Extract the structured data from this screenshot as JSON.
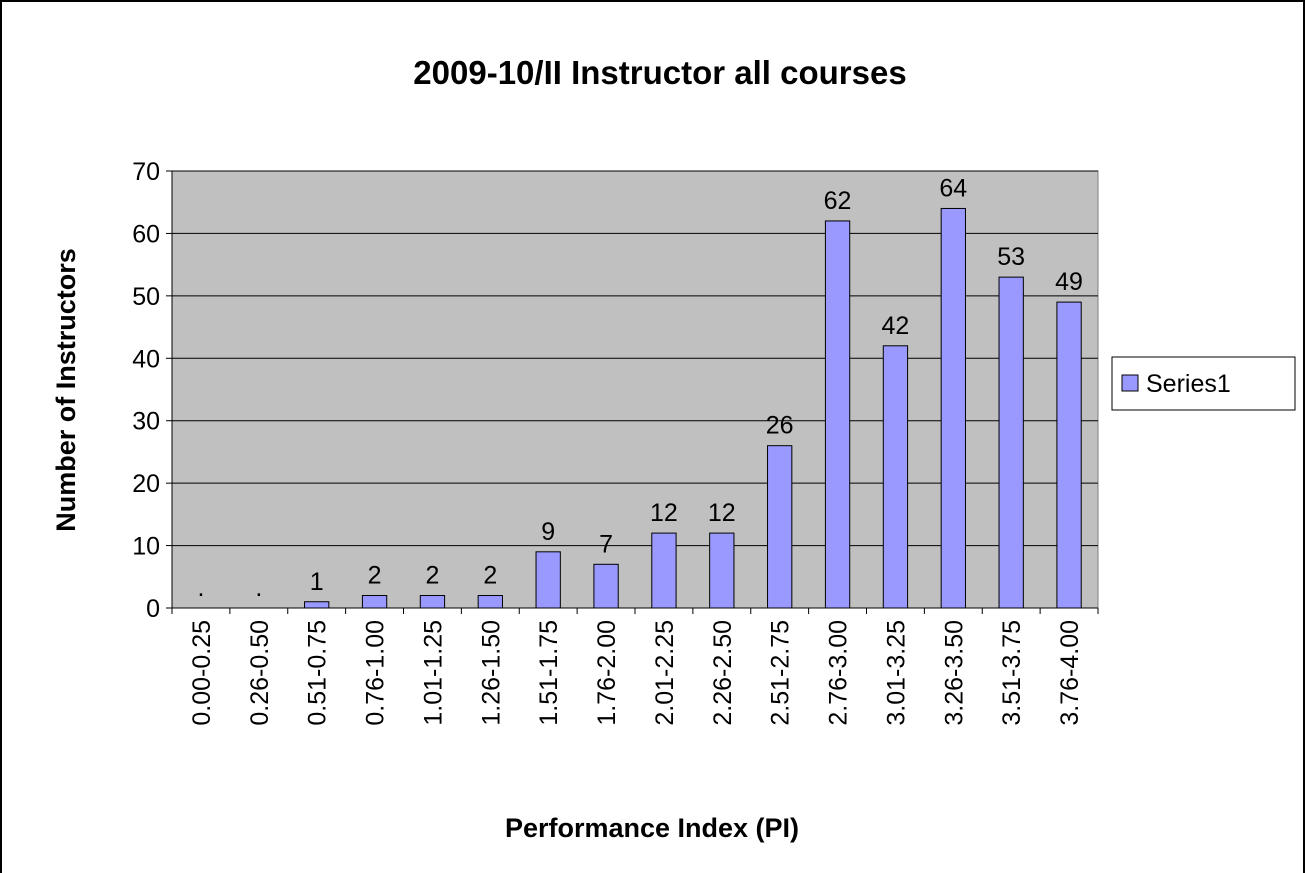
{
  "chart_data": {
    "type": "bar",
    "title": "2009-10/II Instructor all courses",
    "xlabel": "Performance Index (PI)",
    "ylabel": "Number of Instructors",
    "categories": [
      "0.00-0.25",
      "0.26-0.50",
      "0.51-0.75",
      "0.76-1.00",
      "1.01-1.25",
      "1.26-1.50",
      "1.51-1.75",
      "1.76-2.00",
      "2.01-2.25",
      "2.26-2.50",
      "2.51-2.75",
      "2.76-3.00",
      "3.01-3.25",
      "3.26-3.50",
      "3.51-3.75",
      "3.76-4.00"
    ],
    "series": [
      {
        "name": "Series1",
        "color": "#9999ff",
        "values": [
          0,
          0,
          1,
          2,
          2,
          2,
          9,
          7,
          12,
          12,
          26,
          62,
          42,
          64,
          53,
          49
        ],
        "value_labels": [
          ".",
          ".",
          "1",
          "2",
          "2",
          "2",
          "9",
          "7",
          "12",
          "12",
          "26",
          "62",
          "42",
          "64",
          "53",
          "49"
        ]
      }
    ],
    "ylim": [
      0,
      70
    ],
    "yticks": [
      0,
      10,
      20,
      30,
      40,
      50,
      60,
      70
    ],
    "grid": true,
    "plot_background": "#c0c0c0",
    "legend": "right"
  }
}
